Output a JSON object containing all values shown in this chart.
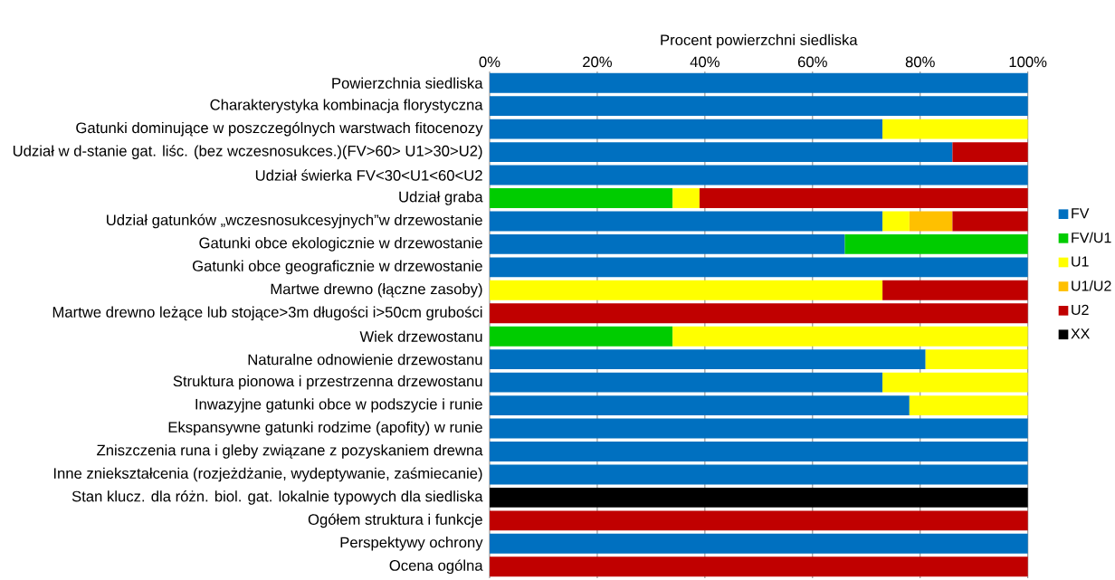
{
  "chart_data": {
    "type": "bar",
    "orientation": "horizontal",
    "stacked": true,
    "xlabel": "Procent powierzchni siedliska",
    "categories": [
      "Powierzchnia siedliska",
      "Charakterystyka kombinacja florystyczna",
      "Gatunki dominujące w poszczególnych warstwach fitocenozy",
      "Udział w d-stanie gat. liśc. (bez wczesnosukces.)(FV>60> U1>30>U2)",
      "Udział świerka FV<30<U1<60<U2",
      "Udział graba",
      "Udział gatunków „wczesnosukcesyjnych”w drzewostanie",
      "Gatunki obce  ekologicznie w drzewostanie",
      "Gatunki obce geograficznie w drzewostanie",
      "Martwe drewno (łączne zasoby)",
      "Martwe drewno leżące lub stojące>3m długości i>50cm grubości",
      "Wiek drzewostanu",
      "Naturalne odnowienie drzewostanu",
      "Struktura pionowa i przestrzenna drzewostanu",
      "Inwazyjne gatunki obce w podszycie i runie",
      "Ekspansywne gatunki rodzime (apofity) w runie",
      "Zniszczenia runa i gleby związane z pozyskaniem drewna",
      "Inne zniekształcenia (rozjeżdżanie, wydeptywanie, zaśmiecanie)",
      "Stan klucz. dla różn. biol. gat. lokalnie typowych dla siedliska",
      "Ogółem struktura i funkcje",
      "Perspektywy ochrony",
      "Ocena ogólna"
    ],
    "series": [
      {
        "name": "FV",
        "color": "#0070c0",
        "values": [
          100,
          100,
          73,
          86,
          100,
          null,
          73,
          66,
          100,
          null,
          null,
          null,
          81,
          73,
          78,
          100,
          100,
          100,
          null,
          null,
          100,
          null
        ]
      },
      {
        "name": "FV/U1",
        "color": "#00cc00",
        "values": [
          null,
          null,
          null,
          null,
          null,
          34,
          null,
          34,
          null,
          null,
          null,
          34,
          null,
          null,
          null,
          null,
          null,
          null,
          null,
          null,
          null,
          null
        ]
      },
      {
        "name": "U1",
        "color": "#ffff00",
        "values": [
          null,
          null,
          27,
          null,
          null,
          5,
          5,
          null,
          null,
          73,
          null,
          66,
          19,
          27,
          22,
          null,
          null,
          null,
          null,
          null,
          null,
          null
        ]
      },
      {
        "name": "U1/U2",
        "color": "#ffc000",
        "values": [
          null,
          null,
          null,
          null,
          null,
          null,
          8,
          null,
          null,
          null,
          null,
          null,
          null,
          null,
          null,
          null,
          null,
          null,
          null,
          null,
          null,
          null
        ]
      },
      {
        "name": "U2",
        "color": "#c00000",
        "values": [
          null,
          null,
          null,
          14,
          null,
          61,
          14,
          null,
          null,
          27,
          100,
          null,
          null,
          null,
          null,
          null,
          null,
          null,
          null,
          100,
          null,
          100
        ]
      },
      {
        "name": "XX",
        "color": "#000000",
        "values": [
          null,
          null,
          null,
          null,
          null,
          null,
          null,
          null,
          null,
          null,
          null,
          null,
          null,
          null,
          null,
          null,
          null,
          null,
          100,
          null,
          null,
          null
        ]
      }
    ],
    "xlim": [
      0,
      100
    ],
    "xticks": [
      {
        "value": 0,
        "label": "0%"
      },
      {
        "value": 20,
        "label": "20%"
      },
      {
        "value": 40,
        "label": "40%"
      },
      {
        "value": 60,
        "label": "60%"
      },
      {
        "value": 80,
        "label": "80%"
      },
      {
        "value": 100,
        "label": "100%"
      }
    ],
    "grid": "x",
    "legend": "right"
  }
}
